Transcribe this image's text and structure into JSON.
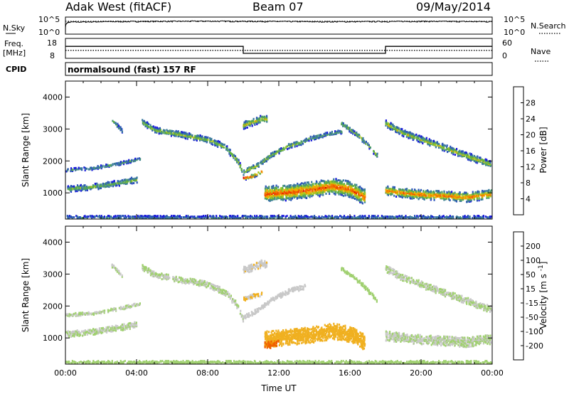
{
  "header": {
    "station": "Adak West (fitACF)",
    "beam": "Beam 07",
    "date": "09/May/2014"
  },
  "top_panel": {
    "nsky_label": "N.Sky",
    "nsearch_label": "N.Search",
    "noise_ticks": [
      "10^5",
      "10^0"
    ],
    "freq_label": "Freq.",
    "freq_unit": "[MHz]",
    "freq_ticks": [
      "18",
      "8"
    ],
    "nave_label": "Nave",
    "nave_ticks": [
      "60",
      "0"
    ],
    "cpid_label": "CPID",
    "cpid_value": "normalsound (fast) 157 RF"
  },
  "colors": {
    "power_scale": [
      "#1a1adc",
      "#2b55b8",
      "#3a7a9c",
      "#4a9a70",
      "#60b040",
      "#a8c81e",
      "#f0b000",
      "#f08000",
      "#f05000",
      "#e00000"
    ],
    "velocity_scale": [
      "#1a3cc8",
      "#3a6ab4",
      "#3c8a50",
      "#70c040",
      "#a0d070",
      "#c8c8c8",
      "#f0b020",
      "#f09000",
      "#f06000",
      "#e02000"
    ]
  },
  "chart_data": [
    {
      "type": "line",
      "panel": "noise",
      "y_scale": "log",
      "ylim": [
        1,
        100000
      ],
      "xlim": [
        0,
        24
      ],
      "series": [
        {
          "name": "N.Sky",
          "x": [
            0,
            0.1,
            0.2,
            2,
            4,
            6,
            8,
            10,
            12,
            14,
            16,
            18,
            20,
            22,
            24
          ],
          "values": [
            1,
            2000,
            3000,
            4000,
            4500,
            5000,
            5500,
            5000,
            4500,
            4000,
            4000,
            4500,
            5000,
            4500,
            4000
          ]
        },
        {
          "name": "N.Search",
          "x": [
            0,
            4,
            8,
            12,
            16,
            20,
            24
          ],
          "values": [
            6000,
            6500,
            7000,
            6500,
            6000,
            6500,
            6000
          ]
        }
      ]
    },
    {
      "type": "line",
      "panel": "frequency",
      "xlim": [
        0,
        24
      ],
      "ylim": [
        8,
        18
      ],
      "series": [
        {
          "name": "Freq.",
          "x": [
            0,
            10,
            10,
            18,
            18,
            24
          ],
          "values": [
            14,
            14,
            10.5,
            10.5,
            14,
            14
          ]
        },
        {
          "name": "Nave",
          "x": [
            0,
            24
          ],
          "values": [
            12,
            12
          ]
        }
      ]
    },
    {
      "type": "heatmap",
      "panel": "power",
      "xlabel": "",
      "ylabel": "Slant Range [km]",
      "xlim": [
        0,
        24
      ],
      "ylim": [
        180,
        4500
      ],
      "y_ticks": [
        "1000",
        "2000",
        "3000",
        "4000"
      ],
      "colorbar": {
        "label": "Power [dB]",
        "ticks": [
          "4",
          "8",
          "12",
          "16",
          "20",
          "24",
          "28"
        ],
        "range": [
          0,
          30
        ]
      },
      "bands": [
        {
          "t": [
            0,
            1,
            2,
            3,
            4
          ],
          "r": [
            1150,
            1200,
            1250,
            1350,
            1450
          ],
          "width": 180,
          "peak": 14
        },
        {
          "t": [
            0,
            1.5,
            3,
            4.2
          ],
          "r": [
            1750,
            1800,
            1950,
            2100
          ],
          "width": 90,
          "peak": 10
        },
        {
          "t": [
            2.6,
            3.2
          ],
          "r": [
            3300,
            2950
          ],
          "width": 120,
          "peak": 12
        },
        {
          "t": [
            4.3,
            5,
            6,
            7,
            8,
            9,
            9.7,
            10
          ],
          "r": [
            3250,
            3000,
            2900,
            2800,
            2700,
            2450,
            2000,
            1600
          ],
          "width": 180,
          "peak": 16
        },
        {
          "t": [
            10,
            10.8,
            11.5,
            12.5,
            13.5
          ],
          "r": [
            1700,
            1900,
            2200,
            2500,
            2650
          ],
          "width": 150,
          "peak": 16
        },
        {
          "t": [
            10,
            11,
            11.3
          ],
          "r": [
            3150,
            3350,
            3350
          ],
          "width": 220,
          "peak": 18
        },
        {
          "t": [
            10,
            10.5,
            11
          ],
          "r": [
            1500,
            1550,
            1700
          ],
          "width": 120,
          "peak": 28
        },
        {
          "t": [
            13.5,
            14.5,
            15.5
          ],
          "r": [
            2700,
            2850,
            2950
          ],
          "width": 120,
          "peak": 12
        },
        {
          "t": [
            11.2,
            12.5,
            14,
            15,
            16,
            16.8
          ],
          "r": [
            1000,
            1050,
            1150,
            1250,
            1150,
            900
          ],
          "width": 500,
          "peak": 26
        },
        {
          "t": [
            15.5,
            16.5,
            17.5
          ],
          "r": [
            3200,
            2800,
            2200
          ],
          "width": 130,
          "peak": 14
        },
        {
          "t": [
            18,
            19,
            20,
            21,
            22,
            23,
            24
          ],
          "r": [
            3200,
            2900,
            2700,
            2500,
            2300,
            2100,
            1900
          ],
          "width": 200,
          "peak": 18
        },
        {
          "t": [
            18,
            19.5,
            21,
            22.5,
            24
          ],
          "r": [
            1100,
            1000,
            950,
            900,
            1000
          ],
          "width": 300,
          "peak": 24
        },
        {
          "t": [
            0,
            6,
            12,
            18,
            24
          ],
          "r": [
            250,
            250,
            250,
            250,
            250
          ],
          "width": 140,
          "peak": 8
        }
      ]
    },
    {
      "type": "heatmap",
      "panel": "velocity",
      "xlabel": "Time UT",
      "ylabel": "Slant Range [km]",
      "xlim": [
        0,
        24
      ],
      "ylim": [
        180,
        4500
      ],
      "x_ticks": [
        "00:00",
        "04:00",
        "08:00",
        "12:00",
        "16:00",
        "20:00",
        "00:00"
      ],
      "y_ticks": [
        "1000",
        "2000",
        "3000",
        "4000"
      ],
      "colorbar": {
        "label": "Velocity [m s^-1]",
        "ticks": [
          "200",
          "100",
          "50",
          "15",
          "-15",
          "-50",
          "-100",
          "-200"
        ],
        "range": [
          -250,
          250
        ]
      },
      "bands": [
        {
          "t": [
            0,
            1,
            2,
            3,
            4
          ],
          "r": [
            1150,
            1200,
            1250,
            1350,
            1450
          ],
          "width": 180,
          "v": 0
        },
        {
          "t": [
            0,
            1.5,
            3,
            4.2
          ],
          "r": [
            1750,
            1800,
            1950,
            2100
          ],
          "width": 90,
          "v": 0
        },
        {
          "t": [
            2.6,
            3.2
          ],
          "r": [
            3300,
            2950
          ],
          "width": 120,
          "v": 0
        },
        {
          "t": [
            4.3,
            5,
            6,
            7,
            8,
            9,
            9.7,
            10
          ],
          "r": [
            3250,
            3000,
            2900,
            2800,
            2700,
            2450,
            2000,
            1600
          ],
          "width": 180,
          "v": 0
        },
        {
          "t": [
            10,
            10.8,
            11.5,
            12.5,
            13.5
          ],
          "r": [
            1700,
            1900,
            2200,
            2500,
            2650
          ],
          "width": 150,
          "v": -20
        },
        {
          "t": [
            10,
            11,
            11.3
          ],
          "r": [
            3150,
            3350,
            3350
          ],
          "width": 220,
          "v": -40
        },
        {
          "t": [
            10,
            10.5,
            11
          ],
          "r": [
            2250,
            2350,
            2400
          ],
          "width": 120,
          "v": -60
        },
        {
          "t": [
            11.2,
            12.5,
            14,
            15,
            16,
            16.8
          ],
          "r": [
            1000,
            1050,
            1150,
            1250,
            1150,
            900
          ],
          "width": 500,
          "v": -80
        },
        {
          "t": [
            11.2,
            12
          ],
          "r": [
            800,
            850
          ],
          "width": 200,
          "v": -180
        },
        {
          "t": [
            15.5,
            16.5,
            17.5
          ],
          "r": [
            3200,
            2800,
            2200
          ],
          "width": 130,
          "v": 30
        },
        {
          "t": [
            18,
            19,
            20,
            21,
            22,
            23,
            24
          ],
          "r": [
            3200,
            2900,
            2700,
            2500,
            2300,
            2100,
            1900
          ],
          "width": 200,
          "v": 0
        },
        {
          "t": [
            18,
            19.5,
            21,
            22.5,
            24
          ],
          "r": [
            1100,
            1000,
            950,
            900,
            1000
          ],
          "width": 300,
          "v": 0
        },
        {
          "t": [
            0,
            6,
            12,
            18,
            24
          ],
          "r": [
            250,
            250,
            250,
            250,
            250
          ],
          "width": 140,
          "v": 30
        }
      ]
    }
  ]
}
